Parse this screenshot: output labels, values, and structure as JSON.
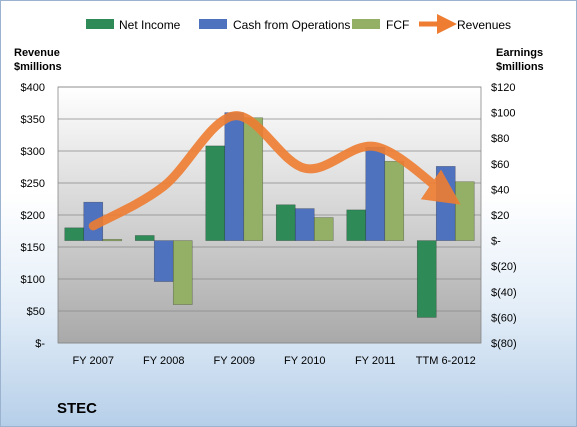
{
  "chart_data": {
    "type": "bar",
    "title": "STEC",
    "categories": [
      "FY 2007",
      "FY 2008",
      "FY 2009",
      "FY 2010",
      "FY 2011",
      "TTM 6-2012"
    ],
    "left_axis": {
      "title_line1": "Revenue",
      "title_line2": "$millions",
      "ticks": [
        "$400",
        "$350",
        "$300",
        "$250",
        "$200",
        "$150",
        "$100",
        "$50",
        "$-"
      ],
      "ylim": [
        0,
        400
      ]
    },
    "right_axis": {
      "title_line1": "Earnings",
      "title_line2": "$millions",
      "ticks": [
        "$120",
        "$100",
        "$80",
        "$60",
        "$40",
        "$20",
        "$-",
        "$(20)",
        "$(40)",
        "$(60)",
        "$(80)"
      ],
      "ylim": [
        -80,
        120
      ]
    },
    "series": [
      {
        "name": "Net Income",
        "axis": "right",
        "color": "#2e8b57",
        "values": [
          10,
          4,
          74,
          28,
          24,
          -60
        ]
      },
      {
        "name": "Cash from Operations",
        "axis": "right",
        "color": "#4f72bf",
        "values": [
          30,
          -32,
          100,
          25,
          73,
          58
        ]
      },
      {
        "name": "FCF",
        "axis": "right",
        "color": "#93b066",
        "values": [
          1,
          -50,
          96,
          18,
          62,
          46
        ]
      }
    ],
    "line_series": {
      "name": "Revenues",
      "axis": "left",
      "color": "#ee7d31",
      "values": [
        183,
        245,
        355,
        273,
        307,
        232
      ]
    },
    "grid": true,
    "legend_position": "top"
  }
}
